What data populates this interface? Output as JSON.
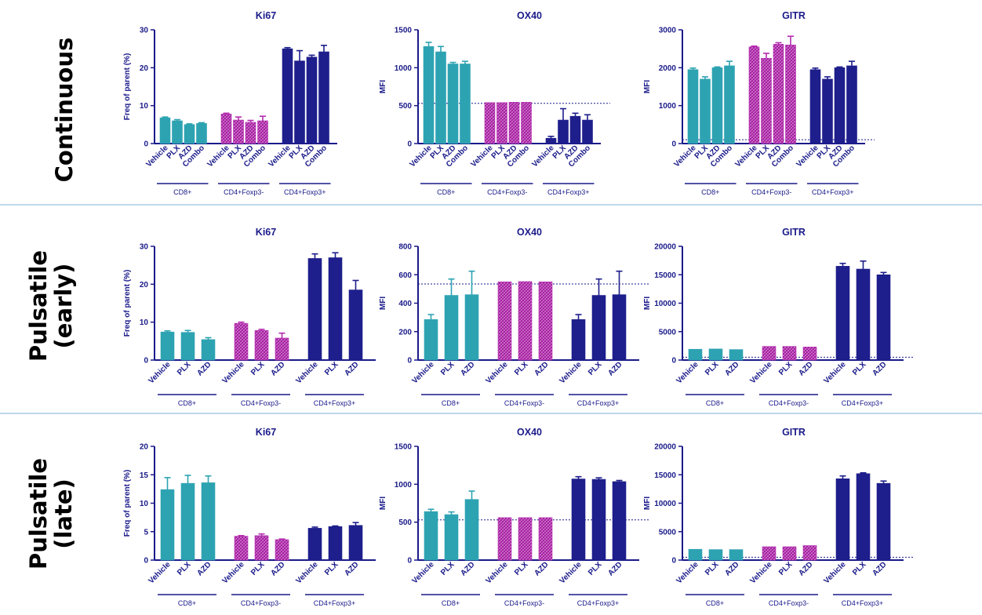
{
  "colors": {
    "teal": "#2da3b2",
    "magenta": "#b52bb0",
    "navy": "#1e1e8c",
    "axis": "#1a1a8a",
    "divider": "#7bb0d6"
  },
  "row_labels": [
    [
      "Continuous"
    ],
    [
      "Pulsatile",
      "(early)"
    ],
    [
      "Pulsatile",
      "(late)"
    ]
  ],
  "chart_data": [
    {
      "type": "bar",
      "title": "Ki67",
      "ylabel": "Freq of parent (%)",
      "ylim": [
        0,
        30
      ],
      "yticks": [
        0,
        10,
        20,
        30
      ],
      "groups": [
        {
          "name": "CD8+",
          "color": "teal",
          "bars": [
            {
              "label": "Vehicle",
              "value": 6.8,
              "err": 0.2
            },
            {
              "label": "PLX",
              "value": 6.0,
              "err": 0.3
            },
            {
              "label": "AZD",
              "value": 5.0,
              "err": 0.2
            },
            {
              "label": "Combo",
              "value": 5.3,
              "err": 0.2
            }
          ]
        },
        {
          "name": "CD4+Foxp3-",
          "color": "magenta",
          "bars": [
            {
              "label": "Vehicle",
              "value": 7.8,
              "err": 0.2
            },
            {
              "label": "PLX",
              "value": 6.2,
              "err": 0.8
            },
            {
              "label": "AZD",
              "value": 5.6,
              "err": 0.5
            },
            {
              "label": "Combo",
              "value": 6.0,
              "err": 1.2
            }
          ]
        },
        {
          "name": "CD4+Foxp3+",
          "color": "navy",
          "bars": [
            {
              "label": "Vehicle",
              "value": 25.0,
              "err": 0.3
            },
            {
              "label": "PLX",
              "value": 21.8,
              "err": 2.7
            },
            {
              "label": "AZD",
              "value": 22.8,
              "err": 0.5
            },
            {
              "label": "Combo",
              "value": 24.2,
              "err": 1.7
            }
          ]
        }
      ]
    },
    {
      "type": "bar",
      "title": "OX40",
      "ylabel": "MFI",
      "ylim": [
        0,
        1500
      ],
      "yticks": [
        0,
        500,
        1000,
        1500
      ],
      "refline": 530,
      "groups": [
        {
          "name": "CD8+",
          "color": "teal",
          "bars": [
            {
              "label": "Vehicle",
              "value": 1280,
              "err": 55
            },
            {
              "label": "PLX",
              "value": 1210,
              "err": 70
            },
            {
              "label": "AZD",
              "value": 1050,
              "err": 20
            },
            {
              "label": "Combo",
              "value": 1050,
              "err": 35
            }
          ]
        },
        {
          "name": "CD4+Foxp3-",
          "color": "magenta",
          "bars": [
            {
              "label": "Vehicle",
              "value": 540,
              "err": 0
            },
            {
              "label": "PLX",
              "value": 540,
              "err": 0
            },
            {
              "label": "AZD",
              "value": 545,
              "err": 0
            },
            {
              "label": "Combo",
              "value": 545,
              "err": 0
            }
          ]
        },
        {
          "name": "CD4+Foxp3+",
          "color": "navy",
          "bars": [
            {
              "label": "Vehicle",
              "value": 70,
              "err": 25
            },
            {
              "label": "PLX",
              "value": 310,
              "err": 150
            },
            {
              "label": "AZD",
              "value": 360,
              "err": 40
            },
            {
              "label": "Combo",
              "value": 310,
              "err": 70
            }
          ]
        }
      ]
    },
    {
      "type": "bar",
      "title": "GITR",
      "ylabel": "MFI",
      "ylim": [
        0,
        3000
      ],
      "yticks": [
        0,
        1000,
        2000,
        3000
      ],
      "refline": 100,
      "groups": [
        {
          "name": "CD8+",
          "color": "teal",
          "bars": [
            {
              "label": "Vehicle",
              "value": 1950,
              "err": 40
            },
            {
              "label": "PLX",
              "value": 1700,
              "err": 60
            },
            {
              "label": "AZD",
              "value": 2000,
              "err": 20
            },
            {
              "label": "Combo",
              "value": 2050,
              "err": 120
            }
          ]
        },
        {
          "name": "CD4+Foxp3-",
          "color": "magenta",
          "bars": [
            {
              "label": "Vehicle",
              "value": 2550,
              "err": 20
            },
            {
              "label": "PLX",
              "value": 2250,
              "err": 130
            },
            {
              "label": "AZD",
              "value": 2620,
              "err": 40
            },
            {
              "label": "Combo",
              "value": 2600,
              "err": 230
            }
          ]
        },
        {
          "name": "CD4+Foxp3+",
          "color": "navy",
          "bars": [
            {
              "label": "Vehicle",
              "value": 1950,
              "err": 40
            },
            {
              "label": "PLX",
              "value": 1700,
              "err": 60
            },
            {
              "label": "AZD",
              "value": 2000,
              "err": 20
            },
            {
              "label": "Combo",
              "value": 2050,
              "err": 120
            }
          ]
        }
      ]
    },
    {
      "type": "bar",
      "title": "Ki67",
      "ylabel": "Freq of parent (%)",
      "ylim": [
        0,
        30
      ],
      "yticks": [
        0,
        10,
        20,
        30
      ],
      "groups": [
        {
          "name": "CD8+",
          "color": "teal",
          "bars": [
            {
              "label": "Vehicle",
              "value": 7.4,
              "err": 0.3
            },
            {
              "label": "PLX",
              "value": 7.3,
              "err": 0.5
            },
            {
              "label": "AZD",
              "value": 5.4,
              "err": 0.5
            }
          ]
        },
        {
          "name": "CD4+Foxp3-",
          "color": "magenta",
          "bars": [
            {
              "label": "Vehicle",
              "value": 9.7,
              "err": 0.3
            },
            {
              "label": "PLX",
              "value": 7.8,
              "err": 0.3
            },
            {
              "label": "AZD",
              "value": 5.8,
              "err": 1.3
            }
          ]
        },
        {
          "name": "CD4+Foxp3+",
          "color": "navy",
          "bars": [
            {
              "label": "Vehicle",
              "value": 26.8,
              "err": 1.2
            },
            {
              "label": "PLX",
              "value": 27.0,
              "err": 1.3
            },
            {
              "label": "AZD",
              "value": 18.5,
              "err": 2.5
            }
          ]
        }
      ]
    },
    {
      "type": "bar",
      "title": "OX40",
      "ylabel": "MFI",
      "ylim": [
        0,
        800
      ],
      "yticks": [
        0,
        200,
        400,
        600,
        800
      ],
      "refline": 535,
      "groups": [
        {
          "name": "CD8+",
          "color": "teal",
          "bars": [
            {
              "label": "Vehicle",
              "value": 285,
              "err": 35
            },
            {
              "label": "PLX",
              "value": 455,
              "err": 115
            },
            {
              "label": "AZD",
              "value": 460,
              "err": 165
            }
          ]
        },
        {
          "name": "CD4+Foxp3-",
          "color": "magenta",
          "bars": [
            {
              "label": "Vehicle",
              "value": 550,
              "err": 0
            },
            {
              "label": "PLX",
              "value": 552,
              "err": 0
            },
            {
              "label": "AZD",
              "value": 550,
              "err": 0
            }
          ]
        },
        {
          "name": "CD4+Foxp3+",
          "color": "navy",
          "bars": [
            {
              "label": "Vehicle",
              "value": 285,
              "err": 35
            },
            {
              "label": "PLX",
              "value": 455,
              "err": 115
            },
            {
              "label": "AZD",
              "value": 460,
              "err": 165
            }
          ]
        }
      ]
    },
    {
      "type": "bar",
      "title": "GITR",
      "ylabel": "MFI",
      "ylim": [
        0,
        20000
      ],
      "yticks": [
        0,
        5000,
        10000,
        15000,
        20000
      ],
      "refline": 500,
      "groups": [
        {
          "name": "CD8+",
          "color": "teal",
          "bars": [
            {
              "label": "Vehicle",
              "value": 1900,
              "err": 0
            },
            {
              "label": "PLX",
              "value": 1950,
              "err": 0
            },
            {
              "label": "AZD",
              "value": 1850,
              "err": 0
            }
          ]
        },
        {
          "name": "CD4+Foxp3-",
          "color": "magenta",
          "bars": [
            {
              "label": "Vehicle",
              "value": 2400,
              "err": 0
            },
            {
              "label": "PLX",
              "value": 2400,
              "err": 0
            },
            {
              "label": "AZD",
              "value": 2300,
              "err": 0
            }
          ]
        },
        {
          "name": "CD4+Foxp3+",
          "color": "navy",
          "bars": [
            {
              "label": "Vehicle",
              "value": 16500,
              "err": 500
            },
            {
              "label": "PLX",
              "value": 16000,
              "err": 1400
            },
            {
              "label": "AZD",
              "value": 15000,
              "err": 400
            }
          ]
        }
      ]
    },
    {
      "type": "bar",
      "title": "Ki67",
      "ylabel": "Freq of parent (%)",
      "ylim": [
        0,
        20
      ],
      "yticks": [
        0,
        5,
        10,
        15,
        20
      ],
      "groups": [
        {
          "name": "CD8+",
          "color": "teal",
          "bars": [
            {
              "label": "Vehicle",
              "value": 12.4,
              "err": 2.1
            },
            {
              "label": "PLX",
              "value": 13.5,
              "err": 1.4
            },
            {
              "label": "AZD",
              "value": 13.6,
              "err": 1.2
            }
          ]
        },
        {
          "name": "CD4+Foxp3-",
          "color": "magenta",
          "bars": [
            {
              "label": "Vehicle",
              "value": 4.2,
              "err": 0.1
            },
            {
              "label": "PLX",
              "value": 4.3,
              "err": 0.3
            },
            {
              "label": "AZD",
              "value": 3.6,
              "err": 0.1
            }
          ]
        },
        {
          "name": "CD4+Foxp3+",
          "color": "navy",
          "bars": [
            {
              "label": "Vehicle",
              "value": 5.6,
              "err": 0.2
            },
            {
              "label": "PLX",
              "value": 5.9,
              "err": 0.1
            },
            {
              "label": "AZD",
              "value": 6.1,
              "err": 0.5
            }
          ]
        }
      ]
    },
    {
      "type": "bar",
      "title": "OX40",
      "ylabel": "MFI",
      "ylim": [
        0,
        1500
      ],
      "yticks": [
        0,
        500,
        1000,
        1500
      ],
      "refline": 530,
      "groups": [
        {
          "name": "CD8+",
          "color": "teal",
          "bars": [
            {
              "label": "Vehicle",
              "value": 640,
              "err": 30
            },
            {
              "label": "PLX",
              "value": 600,
              "err": 35
            },
            {
              "label": "AZD",
              "value": 800,
              "err": 110
            }
          ]
        },
        {
          "name": "CD4+Foxp3-",
          "color": "magenta",
          "bars": [
            {
              "label": "Vehicle",
              "value": 560,
              "err": 0
            },
            {
              "label": "PLX",
              "value": 560,
              "err": 0
            },
            {
              "label": "AZD",
              "value": 560,
              "err": 0
            }
          ]
        },
        {
          "name": "CD4+Foxp3+",
          "color": "navy",
          "bars": [
            {
              "label": "Vehicle",
              "value": 1070,
              "err": 30
            },
            {
              "label": "PLX",
              "value": 1065,
              "err": 20
            },
            {
              "label": "AZD",
              "value": 1035,
              "err": 15
            }
          ]
        }
      ]
    },
    {
      "type": "bar",
      "title": "GITR",
      "ylabel": "MFI",
      "ylim": [
        0,
        20000
      ],
      "yticks": [
        0,
        5000,
        10000,
        15000,
        20000
      ],
      "refline": 500,
      "groups": [
        {
          "name": "CD8+",
          "color": "teal",
          "bars": [
            {
              "label": "Vehicle",
              "value": 1900,
              "err": 0
            },
            {
              "label": "PLX",
              "value": 1850,
              "err": 0
            },
            {
              "label": "AZD",
              "value": 1850,
              "err": 0
            }
          ]
        },
        {
          "name": "CD4+Foxp3-",
          "color": "magenta",
          "bars": [
            {
              "label": "Vehicle",
              "value": 2350,
              "err": 0
            },
            {
              "label": "PLX",
              "value": 2350,
              "err": 0
            },
            {
              "label": "AZD",
              "value": 2550,
              "err": 0
            }
          ]
        },
        {
          "name": "CD4+Foxp3+",
          "color": "navy",
          "bars": [
            {
              "label": "Vehicle",
              "value": 14300,
              "err": 500
            },
            {
              "label": "PLX",
              "value": 15200,
              "err": 150
            },
            {
              "label": "AZD",
              "value": 13500,
              "err": 400
            }
          ]
        }
      ]
    }
  ]
}
